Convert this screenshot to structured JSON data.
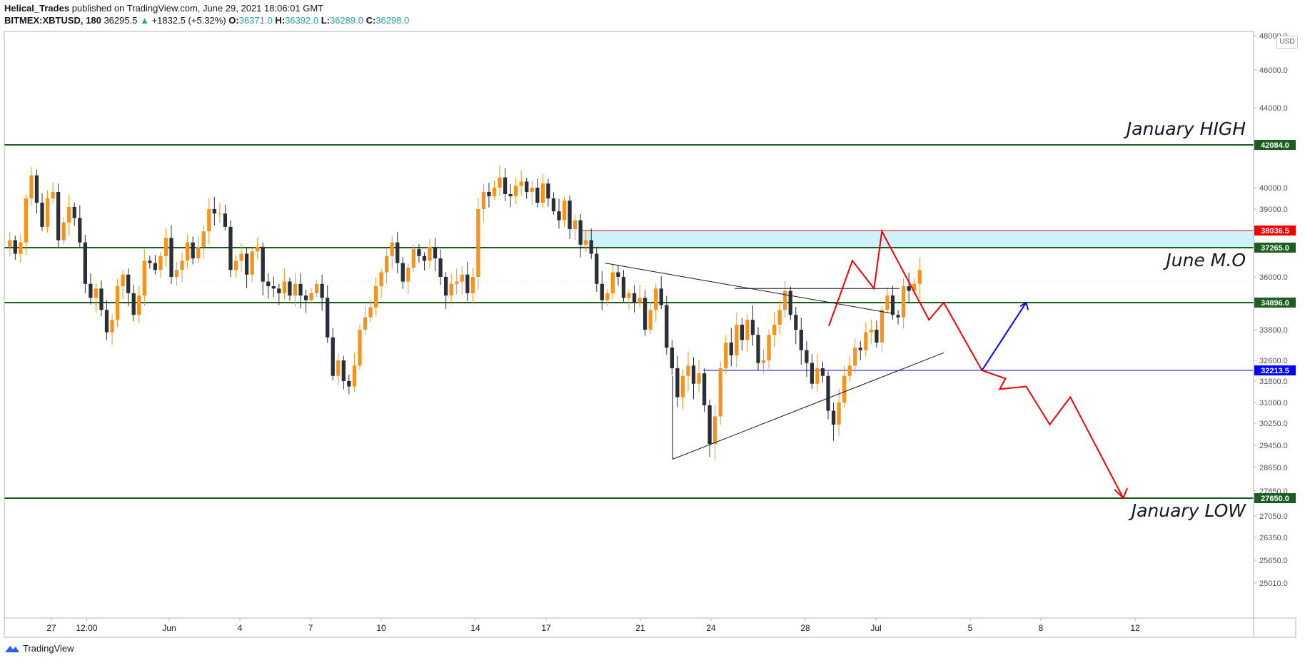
{
  "header": {
    "author": "Helical_Trades",
    "published": "published on TradingView.com, June 29, 2021 18:06:01 GMT",
    "symbol": "BITMEX:XBTUSD, 180",
    "last": "36295.5",
    "change": "+1832.5 (+5.32%)",
    "o_label": "O:",
    "o": "36371.0",
    "h_label": "H:",
    "h": "36392.0",
    "l_label": "L:",
    "l": "36289.0",
    "c_label": "C:",
    "c": "36298.0"
  },
  "footer": {
    "brand": "TradingView",
    "logo_icon": "tradingview-logo-icon"
  },
  "colors": {
    "up": "#f7931a",
    "down": "#2a2e39",
    "level": "#1b5e20",
    "red": "#f40000",
    "blue": "#0000ff",
    "zone": "#b2ebf2"
  },
  "chart_data": {
    "type": "candlestick",
    "currency": "USD",
    "y_ticks": [
      48000.0,
      46000.0,
      44000.0,
      40000.0,
      39000.0,
      36000.0,
      33800.0,
      32600.0,
      31800.0,
      31000.0,
      30250.0,
      29450.0,
      28650.0,
      27850.0,
      27050.0,
      26350.0,
      25650.0,
      25010.0
    ],
    "y_tick_labels": [
      "48000.0",
      "46000.0",
      "44000.0",
      "40000.0",
      "39000.0",
      "36000.0",
      "33800.0",
      "32600.0",
      "31800.0",
      "31000.0",
      "30250.0",
      "29450.0",
      "28650.0",
      "27850.0",
      "27050.0",
      "26350.0",
      "25650.0",
      "25010.0"
    ],
    "x_ticks": [
      {
        "label": "27",
        "date": "2021-05-27"
      },
      {
        "label": "12:00",
        "date": "2021-05-28T12:00"
      },
      {
        "label": "Jun",
        "date": "2021-06-01"
      },
      {
        "label": "4",
        "date": "2021-06-04"
      },
      {
        "label": "7",
        "date": "2021-06-07"
      },
      {
        "label": "10",
        "date": "2021-06-10"
      },
      {
        "label": "14",
        "date": "2021-06-14"
      },
      {
        "label": "17",
        "date": "2021-06-17"
      },
      {
        "label": "21",
        "date": "2021-06-21"
      },
      {
        "label": "24",
        "date": "2021-06-24"
      },
      {
        "label": "28",
        "date": "2021-06-28"
      },
      {
        "label": "Jul",
        "date": "2021-07-01"
      },
      {
        "label": "5",
        "date": "2021-07-05"
      },
      {
        "label": "8",
        "date": "2021-07-08"
      },
      {
        "label": "12",
        "date": "2021-07-12"
      }
    ],
    "levels": [
      {
        "price": 42084.0,
        "label": "42084.0",
        "name": "January HIGH",
        "color": "#1b5e20"
      },
      {
        "price": 37265.0,
        "label": "37265.0",
        "name": "June M.O",
        "color": "#1b5e20"
      },
      {
        "price": 34896.0,
        "label": "34896.0",
        "name": "",
        "color": "#1b5e20"
      },
      {
        "price": 27650.0,
        "label": "27650.0",
        "name": "January LOW",
        "color": "#1b5e20"
      },
      {
        "price": 38036.5,
        "label": "38036.5",
        "name": "",
        "color": "#f40000"
      },
      {
        "price": 32213.5,
        "label": "32213.5",
        "name": "",
        "color": "#0000ff"
      }
    ],
    "zone": {
      "from": 37265.0,
      "to": 38036.5,
      "start": "2021-06-18"
    },
    "closes": [
      37600,
      37000,
      37500,
      39500,
      40600,
      39300,
      38200,
      39500,
      39800,
      37600,
      38400,
      39100,
      38600,
      37500,
      35700,
      35100,
      35500,
      34600,
      33700,
      34200,
      35600,
      36100,
      35300,
      34400,
      35200,
      36700,
      36600,
      36300,
      36900,
      37700,
      36000,
      36300,
      36700,
      37500,
      36800,
      37300,
      38000,
      39000,
      38800,
      38800,
      38200,
      36300,
      36700,
      37000,
      36100,
      37100,
      37300,
      35800,
      35600,
      35500,
      35300,
      35800,
      35200,
      35700,
      35200,
      35000,
      35300,
      35700,
      35100,
      33500,
      32000,
      32600,
      31800,
      31600,
      32400,
      33800,
      34300,
      34700,
      35600,
      36200,
      36900,
      37500,
      36600,
      35800,
      36400,
      37200,
      36900,
      36700,
      37300,
      36800,
      36000,
      35200,
      35700,
      35800,
      36100,
      35300,
      36000,
      39000,
      39800,
      39600,
      40000,
      40500,
      39700,
      39600,
      40100,
      40300,
      39800,
      40000,
      39300,
      40200,
      39500,
      38900,
      38500,
      39400,
      38100,
      38500,
      37400,
      37600,
      37000,
      35700,
      35000,
      35300,
      36200,
      36000,
      35100,
      35300,
      34900,
      35100,
      33800,
      34600,
      35500,
      34800,
      33100,
      32300,
      31200,
      32000,
      32400,
      31700,
      32100,
      30900,
      29500,
      30500,
      32300,
      33300,
      32800,
      34000,
      33400,
      34200,
      33600,
      32500,
      32600,
      33600,
      34000,
      34600,
      35400,
      34400,
      33800,
      33000,
      32500,
      31700,
      32300,
      32000,
      30700,
      30200,
      31000,
      32000,
      32400,
      33100,
      33000,
      33700,
      33800,
      33300,
      34600,
      35200,
      34400,
      34300,
      35600,
      35400,
      35700,
      36300
    ]
  }
}
